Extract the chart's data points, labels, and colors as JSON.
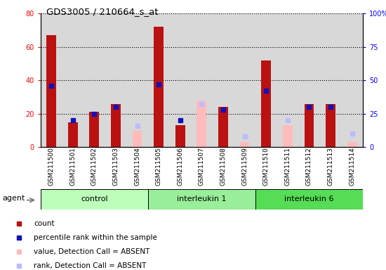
{
  "title": "GDS3005 / 210664_s_at",
  "samples": [
    "GSM211500",
    "GSM211501",
    "GSM211502",
    "GSM211503",
    "GSM211504",
    "GSM211505",
    "GSM211506",
    "GSM211507",
    "GSM211508",
    "GSM211509",
    "GSM211510",
    "GSM211511",
    "GSM211512",
    "GSM211513",
    "GSM211514"
  ],
  "groups": [
    {
      "name": "control",
      "indices": [
        0,
        1,
        2,
        3,
        4
      ],
      "color": "#bbffbb"
    },
    {
      "name": "interleukin 1",
      "indices": [
        5,
        6,
        7,
        8,
        9
      ],
      "color": "#99ee99"
    },
    {
      "name": "interleukin 6",
      "indices": [
        10,
        11,
        12,
        13,
        14
      ],
      "color": "#55dd55"
    }
  ],
  "count": [
    67,
    15,
    21,
    26,
    null,
    72,
    13,
    null,
    24,
    null,
    52,
    null,
    26,
    26,
    null
  ],
  "rank": [
    46,
    20,
    25,
    30,
    null,
    47,
    20,
    null,
    28,
    null,
    42,
    null,
    30,
    30,
    null
  ],
  "absent_value": [
    null,
    null,
    null,
    null,
    10,
    null,
    null,
    28,
    null,
    3,
    null,
    13,
    null,
    null,
    3
  ],
  "absent_rank": [
    null,
    null,
    null,
    null,
    16,
    null,
    null,
    32,
    null,
    8,
    null,
    20,
    null,
    null,
    10
  ],
  "left_ylim": [
    0,
    80
  ],
  "right_ylim": [
    0,
    100
  ],
  "left_yticks": [
    0,
    20,
    40,
    60,
    80
  ],
  "right_yticks": [
    0,
    25,
    50,
    75,
    100
  ],
  "right_yticklabels": [
    "0",
    "25",
    "50",
    "75",
    "100%"
  ],
  "bg_color": "#d8d8d8",
  "count_color": "#bb1111",
  "rank_color": "#1111bb",
  "absent_value_color": "#ffbbbb",
  "absent_rank_color": "#bbbbff",
  "legend_items": [
    {
      "label": "count",
      "color": "#bb1111"
    },
    {
      "label": "percentile rank within the sample",
      "color": "#1111bb"
    },
    {
      "label": "value, Detection Call = ABSENT",
      "color": "#ffbbbb"
    },
    {
      "label": "rank, Detection Call = ABSENT",
      "color": "#bbbbff"
    }
  ]
}
